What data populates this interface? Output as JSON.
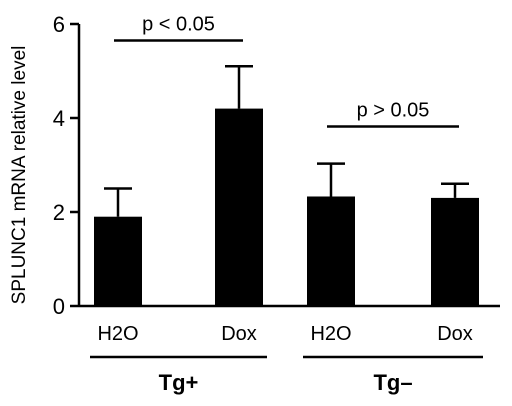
{
  "chart_data": {
    "type": "bar",
    "ylabel": "SPLUNC1 mRNA relative level",
    "ylim": [
      0,
      6
    ],
    "yticks": [
      0,
      2,
      4,
      6
    ],
    "categories": [
      "H2O",
      "Dox",
      "H2O",
      "Dox"
    ],
    "groups": [
      {
        "label": "Tg+",
        "members": [
          0,
          1
        ]
      },
      {
        "label": "Tg–",
        "members": [
          2,
          3
        ]
      }
    ],
    "values": [
      1.9,
      4.2,
      2.33,
      2.3
    ],
    "errors": [
      0.6,
      0.9,
      0.7,
      0.3
    ],
    "annotations": [
      {
        "text": "p < 0.05",
        "from": 0,
        "to": 1,
        "y": 5.65
      },
      {
        "text": "p > 0.05",
        "from": 2,
        "to": 3,
        "y": 3.82
      }
    ],
    "colors": {
      "bar": "#000000",
      "text": "#000000"
    }
  }
}
